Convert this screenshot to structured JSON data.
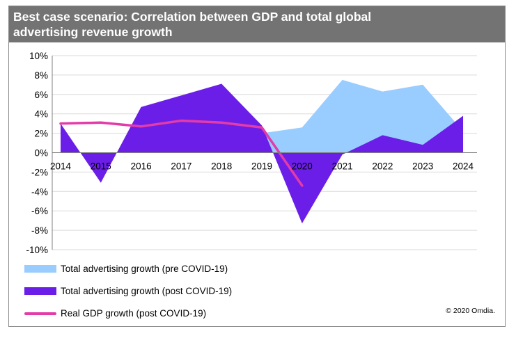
{
  "header": {
    "title": "Best case scenario: Correlation between GDP and total global advertising revenue growth"
  },
  "chart_data": {
    "type": "area",
    "categories": [
      "2014",
      "2015",
      "2016",
      "2017",
      "2018",
      "2019",
      "2020",
      "2021",
      "2022",
      "2023",
      "2024"
    ],
    "y_ticks": [
      "10%",
      "8%",
      "6%",
      "4%",
      "2%",
      "0%",
      "-2%",
      "-4%",
      "-6%",
      "-8%",
      "-10%"
    ],
    "ylim": [
      -10,
      10
    ],
    "grid": true,
    "legend_position": "bottom-left",
    "series": [
      {
        "name": "Total advertising growth (pre COVID-19)",
        "kind": "area",
        "color": "#99ccff",
        "x": [
          "2019",
          "2020",
          "2021",
          "2022",
          "2023",
          "2024"
        ],
        "values": [
          2.0,
          2.6,
          7.5,
          6.3,
          7.0,
          2.2
        ]
      },
      {
        "name": "Total advertising growth (post COVID-19)",
        "kind": "area",
        "color": "#6b1ee8",
        "x": [
          "2014",
          "2015",
          "2016",
          "2017",
          "2018",
          "2019",
          "2020",
          "2021",
          "2022",
          "2023",
          "2024"
        ],
        "values": [
          3.0,
          -3.1,
          4.7,
          5.9,
          7.1,
          2.8,
          -7.3,
          -0.2,
          1.8,
          0.8,
          3.8
        ]
      },
      {
        "name": "Real GDP growth (post COVID-19)",
        "kind": "line",
        "color": "#e33ba8",
        "x": [
          "2014",
          "2015",
          "2016",
          "2017",
          "2018",
          "2019",
          "2020"
        ],
        "values": [
          3.0,
          3.1,
          2.7,
          3.3,
          3.1,
          2.6,
          -3.4
        ]
      }
    ]
  },
  "copyright": "© 2020 Omdia."
}
